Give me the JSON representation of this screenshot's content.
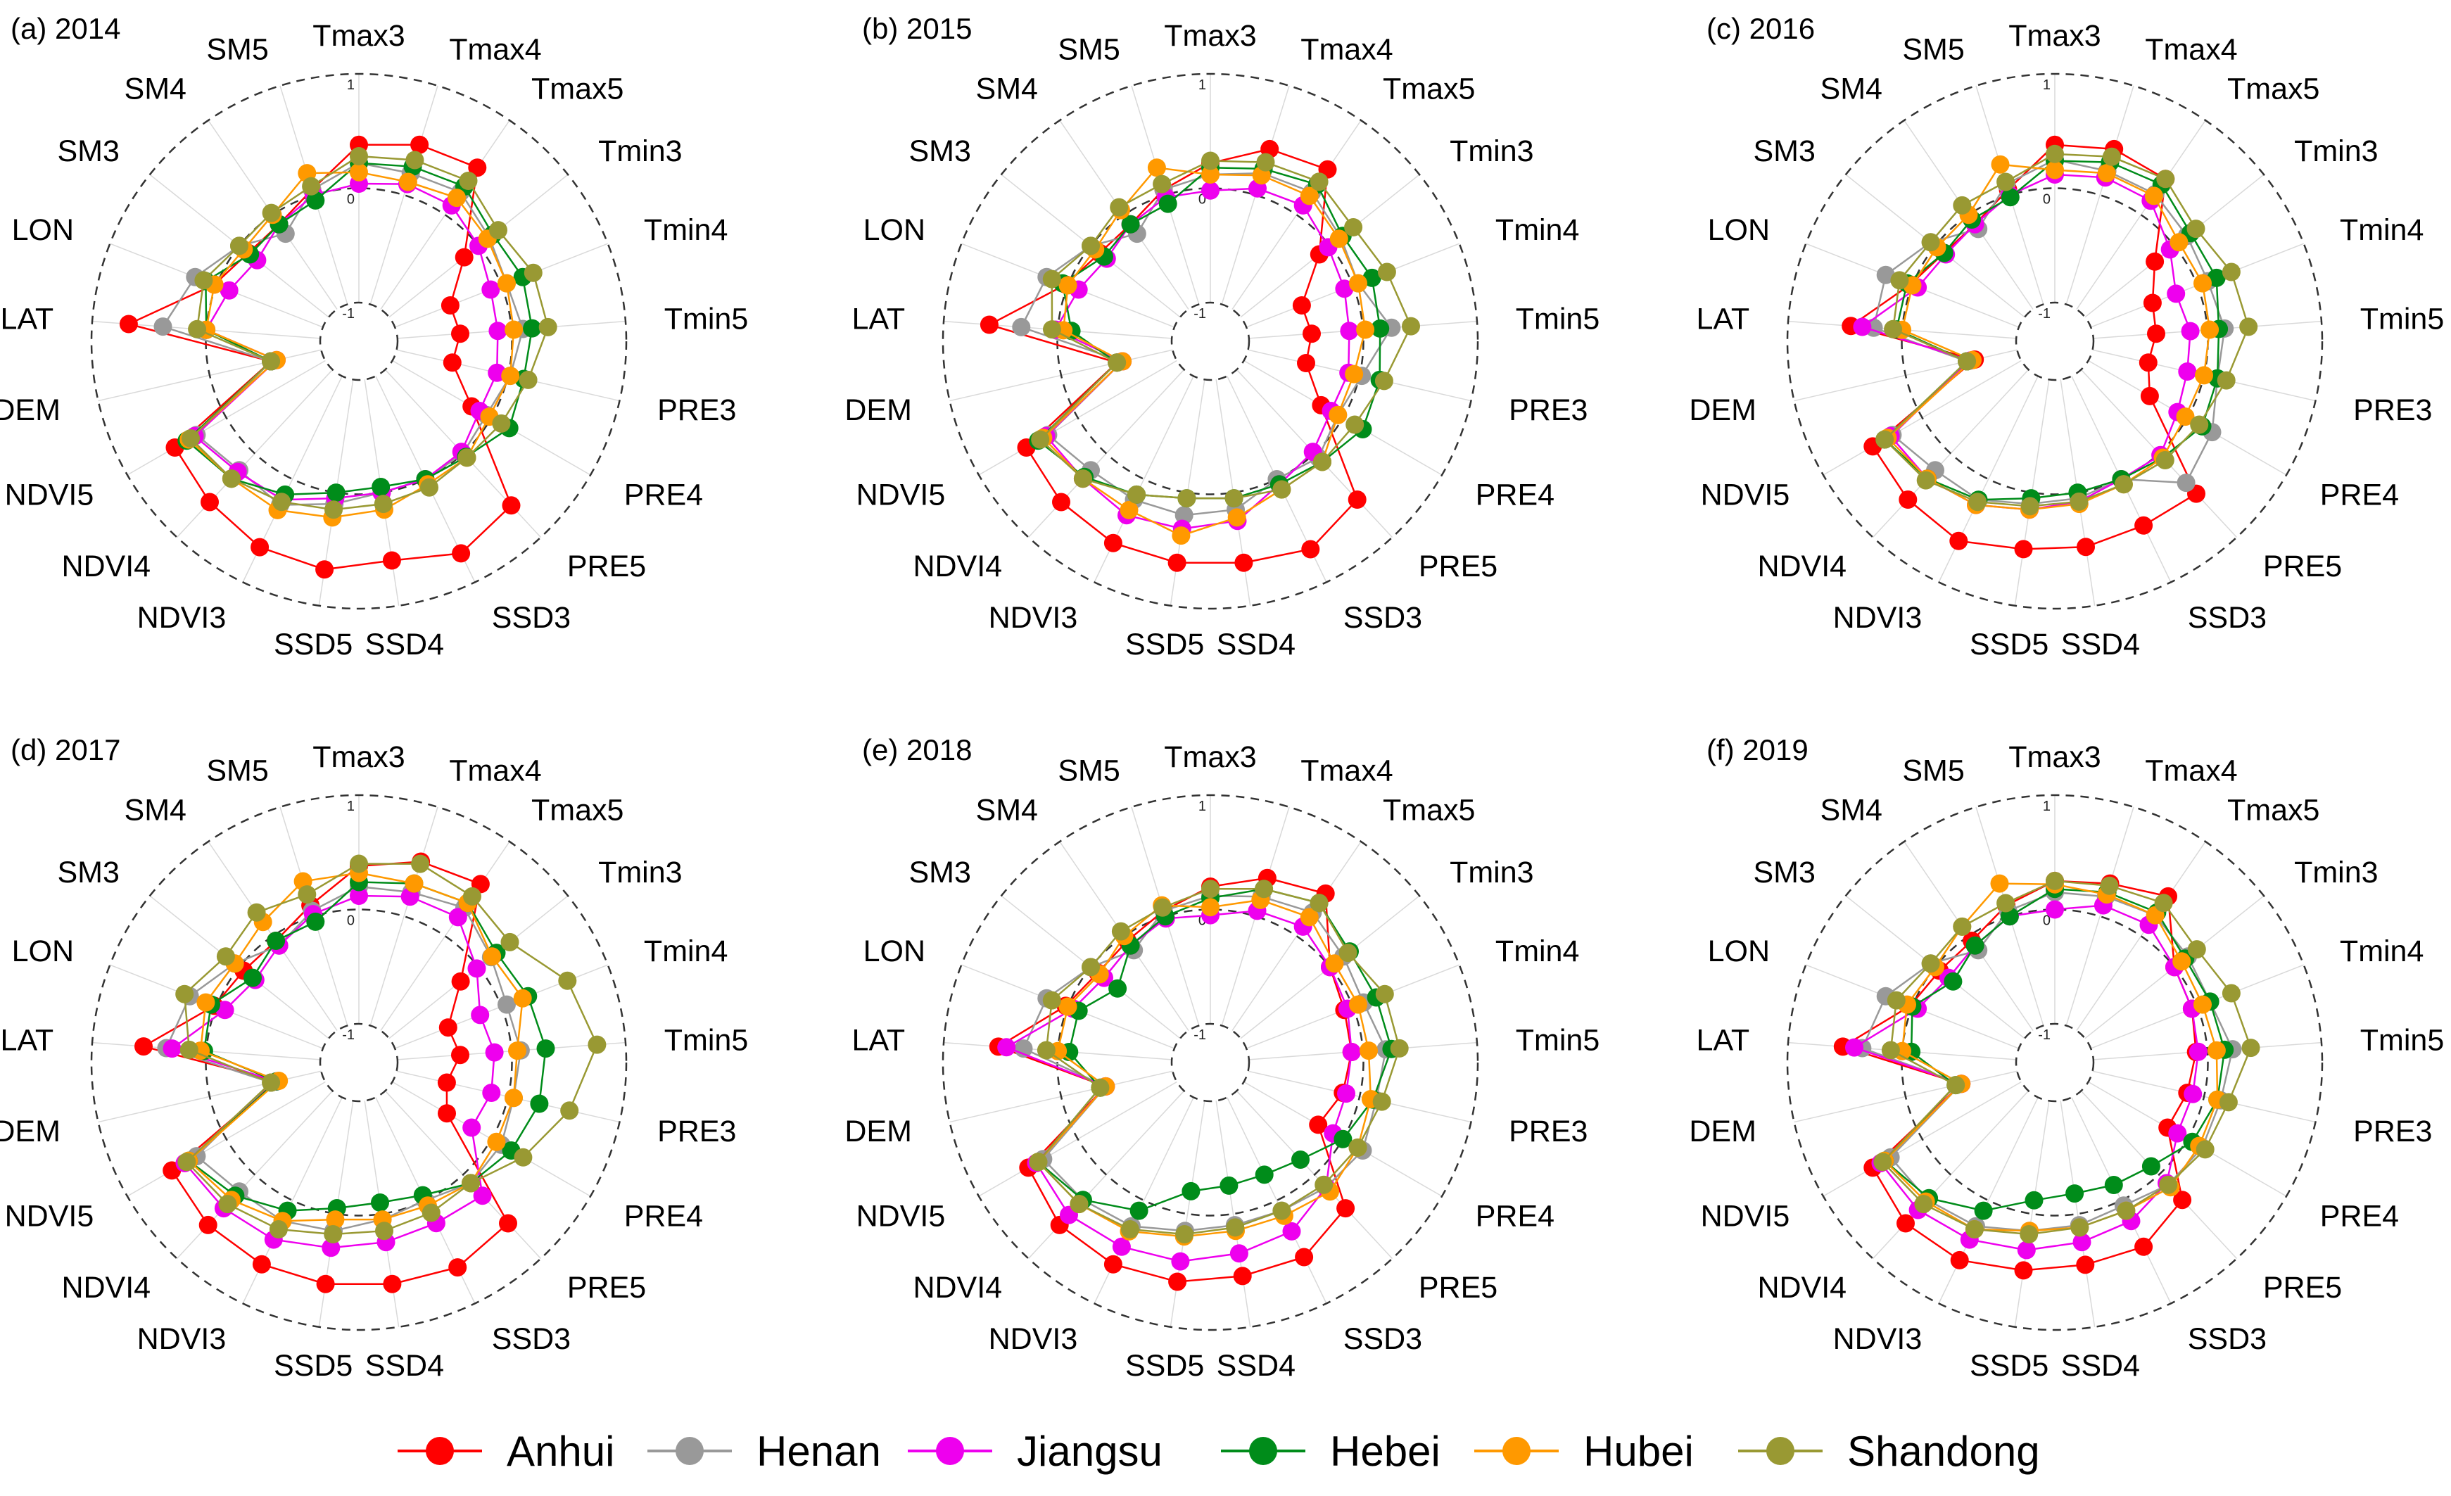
{
  "chart_data": {
    "type": "radar",
    "axes": [
      "Tmax3",
      "Tmax4",
      "Tmax5",
      "Tmin3",
      "Tmin4",
      "Tmin5",
      "PRE3",
      "PRE4",
      "PRE5",
      "SSD3",
      "SSD4",
      "SSD5",
      "NDVI3",
      "NDVI4",
      "NDVI5",
      "DEM",
      "LAT",
      "LON",
      "SM3",
      "SM4",
      "SM5"
    ],
    "radial_range": [
      -1,
      1
    ],
    "grid_levels": [
      -1,
      0,
      1
    ],
    "grid_level_labels": [
      "-1",
      "0",
      "1"
    ],
    "legend_position": "bottom",
    "colors": {
      "Anhui": "#ff0000",
      "Henan": "#999999",
      "Jiangsu": "#ee00ee",
      "Hebei": "#008c1a",
      "Hubei": "#ff9900",
      "Shandong": "#999933"
    },
    "legend": [
      "Anhui",
      "Henan",
      "Jiangsu",
      "Hebei",
      "Hubei",
      "Shandong"
    ],
    "panels": [
      {
        "title": "(a) 2014",
        "series": [
          {
            "name": "Anhui",
            "values": [
              0.38,
              0.46,
              0.5,
              -0.16,
              -0.48,
              -0.45,
              -0.5,
              -0.2,
              0.62,
              0.72,
              0.6,
              0.68,
              0.66,
              0.58,
              0.52,
              -0.55,
              0.68,
              0.02,
              -0.1,
              -0.1,
              0.05
            ]
          },
          {
            "name": "Henan",
            "values": [
              0.22,
              0.2,
              0.24,
              0.12,
              0.05,
              0.1,
              0.02,
              -0.05,
              0.0,
              0.0,
              0.0,
              0.1,
              0.25,
              0.2,
              0.3,
              -0.55,
              0.38,
              0.2,
              0.0,
              -0.2,
              0.05
            ]
          },
          {
            "name": "Jiangsu",
            "values": [
              0.04,
              0.1,
              0.1,
              0.0,
              -0.1,
              -0.12,
              -0.1,
              -0.12,
              -0.02,
              0.0,
              0.0,
              0.05,
              0.2,
              0.22,
              0.32,
              -0.6,
              0.0,
              -0.12,
              -0.2,
              -0.1,
              0.0
            ]
          },
          {
            "name": "Hebei",
            "values": [
              0.22,
              0.26,
              0.3,
              0.16,
              0.2,
              0.18,
              0.14,
              0.18,
              0.04,
              0.0,
              -0.05,
              0.0,
              0.15,
              0.3,
              0.4,
              -0.55,
              0.0,
              0.1,
              -0.12,
              -0.1,
              -0.05
            ]
          },
          {
            "name": "Hubei",
            "values": [
              0.14,
              0.12,
              0.18,
              0.1,
              0.05,
              0.02,
              0.02,
              -0.02,
              0.05,
              0.05,
              0.15,
              0.22,
              0.3,
              0.3,
              0.38,
              -0.6,
              0.0,
              0.02,
              -0.05,
              0.0,
              0.2
            ]
          },
          {
            "name": "Shandong",
            "values": [
              0.28,
              0.32,
              0.36,
              0.22,
              0.3,
              0.32,
              0.18,
              0.1,
              0.05,
              0.08,
              0.1,
              0.15,
              0.22,
              0.3,
              0.36,
              -0.55,
              0.08,
              0.12,
              0.0,
              0.02,
              0.08
            ]
          }
        ]
      },
      {
        "title": "(b) 2015",
        "series": [
          {
            "name": "Anhui",
            "values": [
              0.22,
              0.42,
              0.48,
              -0.12,
              -0.48,
              -0.45,
              -0.48,
              -0.22,
              0.55,
              0.68,
              0.62,
              0.62,
              0.62,
              0.58,
              0.52,
              -0.5,
              0.6,
              0.02,
              -0.1,
              -0.1,
              0.05
            ]
          },
          {
            "name": "Henan",
            "values": [
              0.12,
              0.2,
              0.24,
              0.12,
              0.05,
              0.25,
              0.02,
              -0.05,
              0.05,
              0.0,
              0.15,
              0.2,
              0.2,
              0.2,
              0.3,
              -0.55,
              0.32,
              0.2,
              0.0,
              -0.2,
              0.05
            ]
          },
          {
            "name": "Jiangsu",
            "values": [
              -0.02,
              0.06,
              0.1,
              -0.02,
              -0.08,
              -0.12,
              -0.1,
              -0.12,
              -0.02,
              0.05,
              0.25,
              0.32,
              0.35,
              0.3,
              0.32,
              -0.55,
              0.02,
              -0.1,
              -0.18,
              -0.1,
              -0.02
            ]
          },
          {
            "name": "Hebei",
            "values": [
              0.18,
              0.24,
              0.32,
              0.14,
              0.18,
              0.15,
              0.18,
              0.2,
              0.1,
              0.05,
              0.05,
              0.05,
              0.15,
              0.28,
              0.4,
              -0.5,
              -0.12,
              0.05,
              -0.15,
              -0.1,
              -0.08
            ]
          },
          {
            "name": "Hubei",
            "values": [
              0.12,
              0.18,
              0.2,
              0.1,
              0.05,
              0.02,
              -0.05,
              -0.05,
              0.1,
              0.1,
              0.22,
              0.38,
              0.3,
              0.3,
              0.35,
              -0.55,
              -0.05,
              0.0,
              -0.05,
              0.05,
              0.25
            ]
          },
          {
            "name": "Shandong",
            "values": [
              0.24,
              0.3,
              0.35,
              0.26,
              0.32,
              0.42,
              0.22,
              0.12,
              0.1,
              0.1,
              0.05,
              0.05,
              0.15,
              0.3,
              0.38,
              -0.5,
              0.05,
              0.15,
              0.0,
              0.08,
              0.1
            ]
          }
        ]
      },
      {
        "title": "(c) 2016",
        "series": [
          {
            "name": "Anhui",
            "values": [
              0.38,
              0.42,
              0.38,
              -0.22,
              -0.42,
              -0.45,
              -0.5,
              -0.38,
              0.48,
              0.45,
              0.48,
              0.5,
              0.6,
              0.55,
              0.5,
              -0.62,
              0.45,
              0.02,
              -0.1,
              -0.1,
              0.05
            ]
          },
          {
            "name": "Henan",
            "values": [
              0.25,
              0.22,
              0.22,
              0.14,
              0.1,
              0.15,
              0.12,
              0.25,
              0.35,
              0.0,
              0.05,
              0.1,
              0.2,
              0.2,
              0.3,
              -0.55,
              0.25,
              0.25,
              0.05,
              -0.15,
              0.1
            ]
          },
          {
            "name": "Jiangsu",
            "values": [
              0.12,
              0.16,
              0.15,
              -0.05,
              -0.2,
              -0.15,
              -0.15,
              -0.1,
              0.02,
              0.0,
              0.08,
              0.15,
              0.25,
              0.3,
              0.32,
              -0.58,
              0.35,
              -0.05,
              -0.12,
              -0.1,
              0.0
            ]
          },
          {
            "name": "Hebei",
            "values": [
              0.24,
              0.3,
              0.32,
              0.18,
              0.18,
              0.1,
              0.12,
              0.15,
              0.05,
              0.0,
              0.0,
              0.05,
              0.2,
              0.3,
              0.38,
              -0.55,
              0.05,
              0.05,
              -0.1,
              -0.05,
              -0.02
            ]
          },
          {
            "name": "Hubei",
            "values": [
              0.16,
              0.2,
              0.2,
              0.05,
              0.05,
              0.02,
              0.0,
              -0.02,
              0.05,
              0.05,
              0.1,
              0.15,
              0.25,
              0.3,
              0.35,
              -0.6,
              0.0,
              0.0,
              -0.02,
              0.0,
              0.28
            ]
          },
          {
            "name": "Shandong",
            "values": [
              0.3,
              0.35,
              0.38,
              0.24,
              0.32,
              0.36,
              0.2,
              0.12,
              0.08,
              0.05,
              0.08,
              0.12,
              0.22,
              0.32,
              0.38,
              -0.55,
              0.08,
              0.12,
              0.05,
              0.1,
              0.12
            ]
          }
        ]
      },
      {
        "title": "(d) 2017",
        "series": [
          {
            "name": "Anhui",
            "values": [
              0.38,
              0.5,
              0.55,
              -0.2,
              -0.5,
              -0.45,
              -0.55,
              -0.45,
              0.58,
              0.65,
              0.62,
              0.62,
              0.62,
              0.6,
              0.55,
              -0.6,
              0.55,
              0.02,
              -0.05,
              -0.05,
              0.1
            ]
          },
          {
            "name": "Henan",
            "values": [
              0.2,
              0.22,
              0.3,
              0.14,
              0.05,
              0.08,
              0.05,
              0.1,
              0.1,
              0.0,
              0.05,
              0.15,
              0.2,
              0.2,
              0.3,
              -0.55,
              0.35,
              0.25,
              0.05,
              -0.1,
              0.05
            ]
          },
          {
            "name": "Jiangsu",
            "values": [
              0.12,
              0.18,
              0.2,
              -0.02,
              -0.2,
              -0.15,
              -0.15,
              -0.2,
              0.25,
              0.22,
              0.25,
              0.3,
              0.38,
              0.4,
              0.42,
              -0.6,
              0.3,
              -0.08,
              -0.18,
              -0.1,
              0.02
            ]
          },
          {
            "name": "Hebei",
            "values": [
              0.24,
              0.3,
              0.35,
              0.2,
              0.25,
              0.3,
              0.28,
              0.2,
              0.1,
              -0.05,
              -0.1,
              -0.05,
              0.1,
              0.25,
              0.38,
              -0.6,
              0.02,
              0.05,
              -0.15,
              -0.05,
              -0.05
            ]
          },
          {
            "name": "Hubei",
            "values": [
              0.32,
              0.3,
              0.35,
              0.15,
              0.2,
              0.05,
              0.05,
              0.05,
              0.1,
              0.05,
              0.05,
              0.05,
              0.2,
              0.3,
              0.38,
              -0.62,
              0.05,
              0.1,
              0.05,
              0.15,
              0.32
            ]
          },
          {
            "name": "Shandong",
            "values": [
              0.4,
              0.48,
              0.42,
              0.35,
              0.62,
              0.75,
              0.55,
              0.32,
              0.1,
              0.12,
              0.15,
              0.18,
              0.28,
              0.35,
              0.4,
              -0.55,
              0.15,
              0.3,
              0.15,
              0.25,
              0.2
            ]
          }
        ]
      },
      {
        "title": "(e) 2018",
        "series": [
          {
            "name": "Anhui",
            "values": [
              0.2,
              0.35,
              0.45,
              0.0,
              -0.08,
              -0.1,
              -0.15,
              -0.25,
              0.4,
              0.55,
              0.55,
              0.6,
              0.62,
              0.6,
              0.5,
              -0.4,
              0.52,
              0.02,
              -0.08,
              -0.05,
              0.05
            ]
          },
          {
            "name": "Henan",
            "values": [
              0.12,
              0.18,
              0.25,
              0.15,
              0.1,
              0.2,
              0.15,
              0.2,
              0.15,
              0.1,
              0.1,
              0.15,
              0.25,
              0.3,
              0.35,
              -0.4,
              0.3,
              0.2,
              0.0,
              -0.15,
              0.05
            ]
          },
          {
            "name": "Jiangsu",
            "values": [
              -0.05,
              0.05,
              0.1,
              0.0,
              -0.05,
              -0.1,
              -0.12,
              -0.1,
              0.15,
              0.3,
              0.35,
              0.42,
              0.45,
              0.48,
              0.42,
              -0.4,
              0.45,
              -0.05,
              -0.15,
              -0.1,
              -0.02
            ]
          },
          {
            "name": "Hebei",
            "values": [
              0.1,
              0.25,
              0.35,
              0.22,
              0.22,
              0.25,
              0.12,
              0.0,
              -0.18,
              -0.25,
              -0.25,
              -0.2,
              0.1,
              0.3,
              0.4,
              -0.35,
              -0.1,
              -0.1,
              -0.3,
              -0.1,
              0.0
            ]
          },
          {
            "name": "Hubei",
            "values": [
              0.02,
              0.15,
              0.2,
              0.05,
              0.05,
              0.05,
              0.1,
              0.15,
              0.2,
              0.15,
              0.15,
              0.2,
              0.3,
              0.35,
              0.4,
              -0.4,
              0.0,
              0.0,
              -0.1,
              0.0,
              0.1
            ]
          },
          {
            "name": "Shandong",
            "values": [
              0.18,
              0.25,
              0.35,
              0.2,
              0.3,
              0.32,
              0.2,
              0.15,
              0.12,
              0.1,
              0.12,
              0.18,
              0.28,
              0.35,
              0.4,
              -0.35,
              0.1,
              0.15,
              0.0,
              0.05,
              0.08
            ]
          }
        ]
      },
      {
        "title": "(f) 2019",
        "series": [
          {
            "name": "Anhui",
            "values": [
              0.25,
              0.3,
              0.42,
              0.0,
              -0.05,
              -0.1,
              -0.15,
              -0.2,
              0.3,
              0.45,
              0.45,
              0.5,
              0.58,
              0.58,
              0.5,
              -0.5,
              0.52,
              0.02,
              -0.05,
              -0.05,
              0.1
            ]
          },
          {
            "name": "Henan",
            "values": [
              0.15,
              0.18,
              0.22,
              0.15,
              0.12,
              0.22,
              0.15,
              0.15,
              0.12,
              0.05,
              0.1,
              0.15,
              0.25,
              0.3,
              0.32,
              -0.5,
              0.35,
              0.25,
              0.05,
              -0.15,
              0.05
            ]
          },
          {
            "name": "Jiangsu",
            "values": [
              0.0,
              0.1,
              0.12,
              0.0,
              -0.05,
              -0.08,
              -0.1,
              -0.1,
              0.1,
              0.2,
              0.25,
              0.32,
              0.38,
              0.42,
              0.42,
              -0.5,
              0.42,
              -0.05,
              -0.15,
              -0.1,
              0.0
            ]
          },
          {
            "name": "Hebei",
            "values": [
              0.18,
              0.22,
              0.25,
              0.12,
              0.12,
              0.15,
              0.12,
              0.05,
              -0.1,
              -0.15,
              -0.18,
              -0.12,
              0.1,
              0.28,
              0.38,
              -0.45,
              -0.08,
              0.0,
              -0.2,
              -0.1,
              0.0
            ]
          },
          {
            "name": "Hubei",
            "values": [
              0.22,
              0.2,
              0.22,
              0.08,
              0.05,
              0.08,
              0.12,
              0.12,
              0.15,
              0.1,
              0.12,
              0.15,
              0.28,
              0.32,
              0.38,
              -0.5,
              0.0,
              0.05,
              0.0,
              0.1,
              0.3
            ]
          },
          {
            "name": "Shandong",
            "values": [
              0.25,
              0.28,
              0.35,
              0.25,
              0.32,
              0.38,
              0.22,
              0.18,
              0.12,
              0.1,
              0.12,
              0.18,
              0.28,
              0.35,
              0.4,
              -0.45,
              0.1,
              0.15,
              0.05,
              0.1,
              0.12
            ]
          }
        ]
      }
    ]
  }
}
